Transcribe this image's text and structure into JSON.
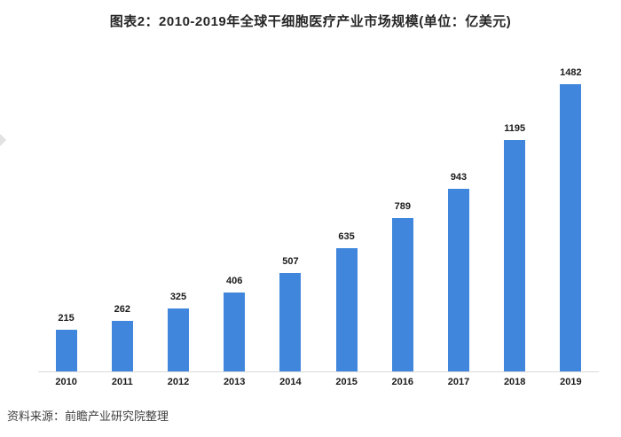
{
  "title": "图表2：2010-2019年全球干细胞医疗产业市场规模(单位：亿美元)",
  "source": "资料来源：前瞻产业研究院整理",
  "colors": {
    "bar": "#3f86dc",
    "axis_line": "#d9d9d9",
    "title_text": "#262626",
    "label_text": "#1a1a1a",
    "source_text": "#404040"
  },
  "chart_data": {
    "type": "bar",
    "categories": [
      "2010",
      "2011",
      "2012",
      "2013",
      "2014",
      "2015",
      "2016",
      "2017",
      "2018",
      "2019"
    ],
    "values": [
      215,
      262,
      325,
      406,
      507,
      635,
      789,
      943,
      1195,
      1482
    ],
    "title": "图表2：2010-2019年全球干细胞医疗产业市场规模(单位：亿美元)",
    "xlabel": "",
    "ylabel": "",
    "ylim": [
      0,
      1600
    ],
    "unit": "亿美元",
    "data_labels": true,
    "gridlines": false,
    "legend": "none",
    "bar_color": "#3f86dc"
  }
}
